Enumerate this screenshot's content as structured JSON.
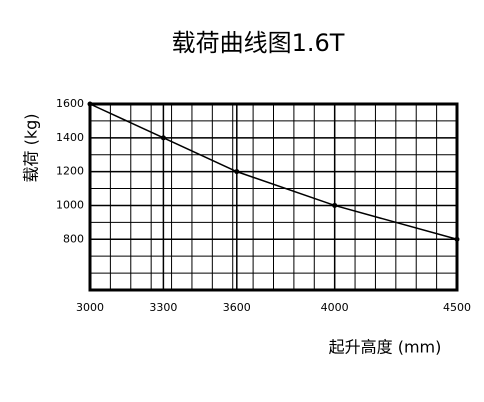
{
  "chart_data": {
    "type": "line",
    "title": "载荷曲线图1.6T",
    "x_label": "起升高度 (mm)",
    "y_label": "载荷 (kg)",
    "x": [
      3000,
      3300,
      3600,
      4000,
      4500
    ],
    "values": [
      1600,
      1400,
      1200,
      1000,
      800
    ],
    "color": "#000000",
    "xlim": [
      3000,
      4500
    ],
    "xticks": [
      3000,
      3300,
      3600,
      4000,
      4500
    ],
    "ylim": [
      500,
      1600
    ],
    "yticks": [
      800,
      1000,
      1200,
      1400,
      1600
    ],
    "grid": true
  }
}
